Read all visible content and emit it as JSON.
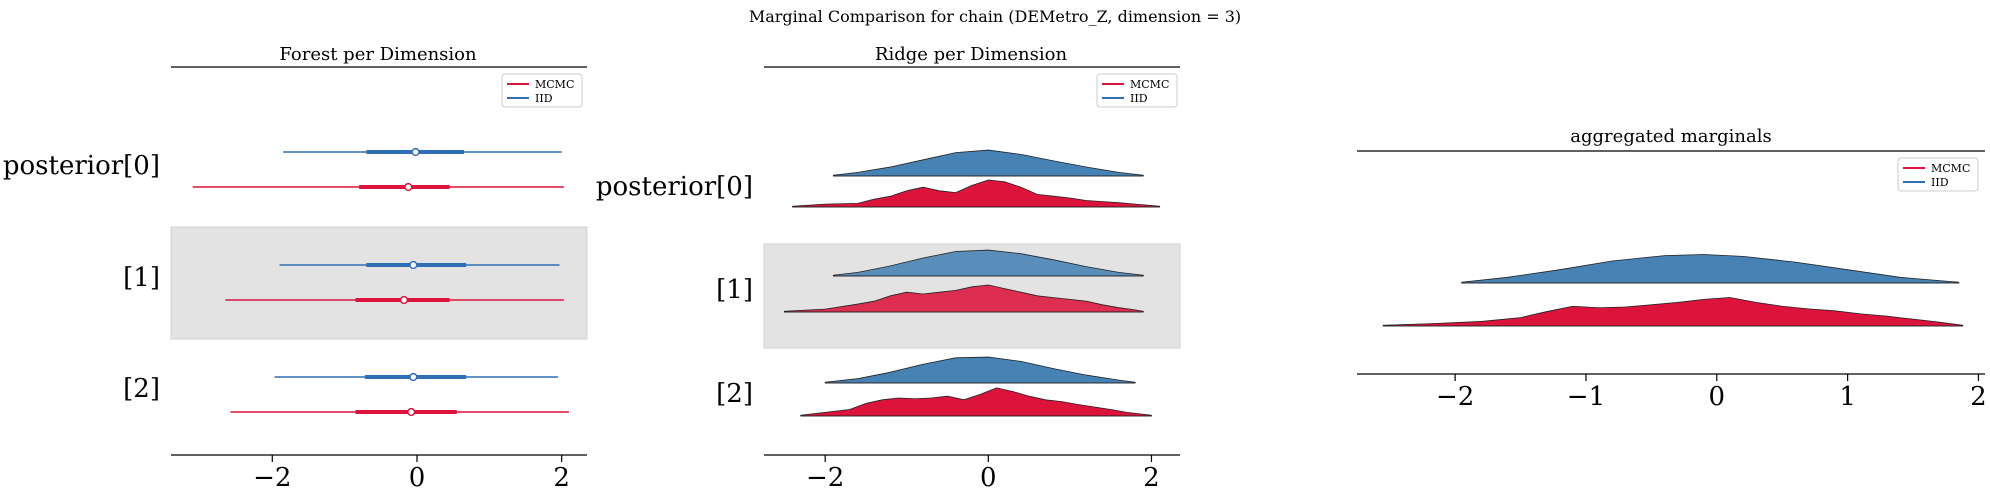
{
  "suptitle": "Marginal Comparison for chain (DEMetro_Z, dimension = 3)",
  "colors": {
    "mcmc": "#dc143c",
    "iid": "#2f6fb5",
    "iid_fill": "#4682b4",
    "band": "#e3e3e3"
  },
  "legend": {
    "mcmc": "MCMC",
    "iid": "IID"
  },
  "chart_data": [
    {
      "type": "forest",
      "title": "Forest per Dimension",
      "rows": [
        "posterior[0]",
        "[1]",
        "[2]"
      ],
      "xlim": [
        -3.4,
        2.35
      ],
      "xticks": [
        -2,
        0,
        2
      ],
      "xtick_labels": [
        "−2",
        "0",
        "2"
      ],
      "shaded_rows": [
        1
      ],
      "series": [
        {
          "name": "IID",
          "rows": [
            {
              "lo": -1.85,
              "q1": -0.7,
              "median": -0.02,
              "q3": 0.65,
              "hi": 2.0
            },
            {
              "lo": -1.9,
              "q1": -0.7,
              "median": -0.05,
              "q3": 0.68,
              "hi": 1.97
            },
            {
              "lo": -1.97,
              "q1": -0.72,
              "median": -0.05,
              "q3": 0.68,
              "hi": 1.95
            }
          ]
        },
        {
          "name": "MCMC",
          "rows": [
            {
              "lo": -3.1,
              "q1": -0.8,
              "median": -0.12,
              "q3": 0.45,
              "hi": 2.03
            },
            {
              "lo": -2.65,
              "q1": -0.85,
              "median": -0.18,
              "q3": 0.45,
              "hi": 2.03
            },
            {
              "lo": -2.58,
              "q1": -0.85,
              "median": -0.08,
              "q3": 0.55,
              "hi": 2.1
            }
          ]
        }
      ]
    },
    {
      "type": "ridge",
      "title": "Ridge per Dimension",
      "rows": [
        "posterior[0]",
        "[1]",
        "[2]"
      ],
      "xlim": [
        -2.75,
        2.35
      ],
      "xticks": [
        -2,
        0,
        2
      ],
      "xtick_labels": [
        "−2",
        "0",
        "2"
      ],
      "shaded_rows": [
        1
      ],
      "series": [
        {
          "name": "IID",
          "rows": [
            {
              "x": [
                -1.9,
                -1.6,
                -1.2,
                -0.8,
                -0.4,
                0.0,
                0.4,
                0.8,
                1.2,
                1.6,
                1.9
              ],
              "y": [
                0.02,
                0.1,
                0.25,
                0.45,
                0.65,
                0.72,
                0.6,
                0.42,
                0.25,
                0.1,
                0.02
              ]
            },
            {
              "x": [
                -1.9,
                -1.6,
                -1.2,
                -0.8,
                -0.4,
                0.0,
                0.4,
                0.8,
                1.2,
                1.6,
                1.9
              ],
              "y": [
                0.02,
                0.1,
                0.28,
                0.5,
                0.68,
                0.72,
                0.62,
                0.45,
                0.26,
                0.1,
                0.02
              ]
            },
            {
              "x": [
                -2.0,
                -1.6,
                -1.2,
                -0.8,
                -0.4,
                0.0,
                0.4,
                0.8,
                1.2,
                1.6,
                1.8
              ],
              "y": [
                0.02,
                0.12,
                0.3,
                0.52,
                0.7,
                0.72,
                0.6,
                0.4,
                0.22,
                0.08,
                0.02
              ]
            }
          ]
        },
        {
          "name": "MCMC",
          "rows": [
            {
              "x": [
                -2.4,
                -2.0,
                -1.6,
                -1.4,
                -1.2,
                -1.0,
                -0.8,
                -0.6,
                -0.4,
                -0.2,
                0.0,
                0.2,
                0.4,
                0.6,
                0.8,
                1.0,
                1.2,
                1.4,
                1.6,
                1.8,
                2.1
              ],
              "y": [
                0.02,
                0.08,
                0.1,
                0.22,
                0.3,
                0.45,
                0.55,
                0.45,
                0.4,
                0.6,
                0.75,
                0.7,
                0.55,
                0.35,
                0.3,
                0.25,
                0.18,
                0.15,
                0.12,
                0.08,
                0.02
              ]
            },
            {
              "x": [
                -2.5,
                -2.0,
                -1.6,
                -1.4,
                -1.2,
                -1.0,
                -0.8,
                -0.6,
                -0.4,
                -0.2,
                0.0,
                0.2,
                0.4,
                0.6,
                0.8,
                1.0,
                1.2,
                1.4,
                1.6,
                1.8,
                1.9
              ],
              "y": [
                0.02,
                0.08,
                0.22,
                0.3,
                0.45,
                0.55,
                0.5,
                0.55,
                0.6,
                0.7,
                0.75,
                0.65,
                0.55,
                0.45,
                0.4,
                0.35,
                0.3,
                0.2,
                0.12,
                0.06,
                0.02
              ]
            },
            {
              "x": [
                -2.3,
                -2.0,
                -1.7,
                -1.5,
                -1.3,
                -1.1,
                -0.9,
                -0.7,
                -0.5,
                -0.3,
                -0.1,
                0.1,
                0.3,
                0.5,
                0.7,
                0.9,
                1.1,
                1.3,
                1.5,
                1.7,
                2.0
              ],
              "y": [
                0.02,
                0.1,
                0.18,
                0.35,
                0.45,
                0.5,
                0.48,
                0.5,
                0.55,
                0.45,
                0.6,
                0.78,
                0.68,
                0.55,
                0.45,
                0.4,
                0.32,
                0.25,
                0.18,
                0.1,
                0.02
              ]
            }
          ]
        }
      ]
    },
    {
      "type": "ridge",
      "title": "aggregated marginals",
      "rows": [
        ""
      ],
      "xlim": [
        -2.75,
        2.05
      ],
      "xticks": [
        -2,
        -1,
        0,
        1,
        2
      ],
      "xtick_labels": [
        "−2",
        "−1",
        "0",
        "1",
        "2"
      ],
      "shaded_rows": [],
      "series": [
        {
          "name": "IID",
          "rows": [
            {
              "x": [
                -1.95,
                -1.6,
                -1.2,
                -0.8,
                -0.4,
                -0.1,
                0.2,
                0.6,
                1.0,
                1.4,
                1.85
              ],
              "y": [
                0.02,
                0.15,
                0.35,
                0.58,
                0.72,
                0.75,
                0.7,
                0.55,
                0.35,
                0.15,
                0.02
              ]
            }
          ]
        },
        {
          "name": "MCMC",
          "rows": [
            {
              "x": [
                -2.55,
                -2.2,
                -1.8,
                -1.5,
                -1.3,
                -1.1,
                -0.9,
                -0.7,
                -0.5,
                -0.3,
                -0.1,
                0.1,
                0.3,
                0.5,
                0.7,
                0.9,
                1.1,
                1.3,
                1.5,
                1.7,
                1.88
              ],
              "y": [
                0.02,
                0.06,
                0.12,
                0.22,
                0.38,
                0.52,
                0.48,
                0.5,
                0.56,
                0.62,
                0.7,
                0.75,
                0.62,
                0.52,
                0.45,
                0.4,
                0.32,
                0.26,
                0.18,
                0.1,
                0.02
              ]
            }
          ]
        }
      ]
    }
  ]
}
